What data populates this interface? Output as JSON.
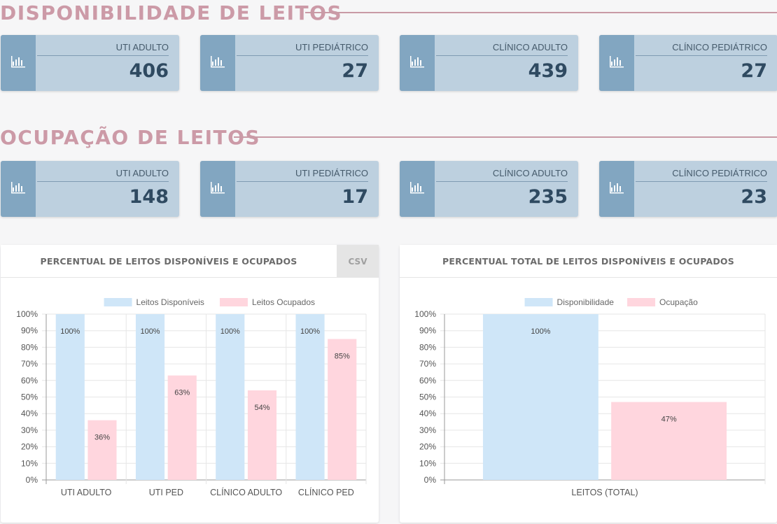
{
  "sections": {
    "available_title": "DISPONIBILIDADE DE LEITOS",
    "occupied_title": "OCUPAÇÃO DE LEITOS"
  },
  "available_cards": [
    {
      "label": "UTI ADULTO",
      "value": "406"
    },
    {
      "label": "UTI PEDIÁTRICO",
      "value": "27"
    },
    {
      "label": "CLÍNICO ADULTO",
      "value": "439"
    },
    {
      "label": "CLÍNICO PEDIÁTRICO",
      "value": "27"
    }
  ],
  "occupied_cards": [
    {
      "label": "UTI ADULTO",
      "value": "148"
    },
    {
      "label": "UTI PEDIÁTRICO",
      "value": "17"
    },
    {
      "label": "CLÍNICO ADULTO",
      "value": "235"
    },
    {
      "label": "CLÍNICO PEDIÁTRICO",
      "value": "23"
    }
  ],
  "card_icon": "bar-chart-icon",
  "colors": {
    "title_pink": "#cc9aa7",
    "card_bg": "#bdd0df",
    "card_icon_bg": "#82a6c1",
    "card_value": "#2f4a61",
    "series_blue": "#cfe6f8",
    "series_pink": "#ffd6de"
  },
  "panels": {
    "left_title": "PERCENTUAL DE LEITOS DISPONÍVEIS E OCUPADOS",
    "csv_label": "CSV",
    "right_title": "PERCENTUAL TOTAL DE LEITOS DISPONÍVEIS E OCUPADOS"
  },
  "chart_data": [
    {
      "type": "bar",
      "categories": [
        "UTI ADULTO",
        "UTI PED",
        "CLÍNICO ADULTO",
        "CLÍNICO PED"
      ],
      "series": [
        {
          "name": "Leitos Disponíveis",
          "values": [
            100,
            100,
            100,
            100
          ],
          "labels": [
            "100%",
            "100%",
            "100%",
            "100%"
          ]
        },
        {
          "name": "Leitos Ocupados",
          "values": [
            36,
            63,
            54,
            85
          ],
          "labels": [
            "36%",
            "63%",
            "54%",
            "85%"
          ]
        }
      ],
      "ylim": [
        0,
        100
      ],
      "yticks": [
        "0%",
        "10%",
        "20%",
        "30%",
        "40%",
        "50%",
        "60%",
        "70%",
        "80%",
        "90%",
        "100%"
      ],
      "legend": "top",
      "grid": true
    },
    {
      "type": "bar",
      "categories": [
        "LEITOS (TOTAL)"
      ],
      "series": [
        {
          "name": "Disponibilidade",
          "values": [
            100
          ],
          "labels": [
            "100%"
          ]
        },
        {
          "name": "Ocupação",
          "values": [
            47
          ],
          "labels": [
            "47%"
          ]
        }
      ],
      "ylim": [
        0,
        100
      ],
      "yticks": [
        "0%",
        "10%",
        "20%",
        "30%",
        "40%",
        "50%",
        "60%",
        "70%",
        "80%",
        "90%",
        "100%"
      ],
      "legend": "top",
      "grid": true
    }
  ]
}
